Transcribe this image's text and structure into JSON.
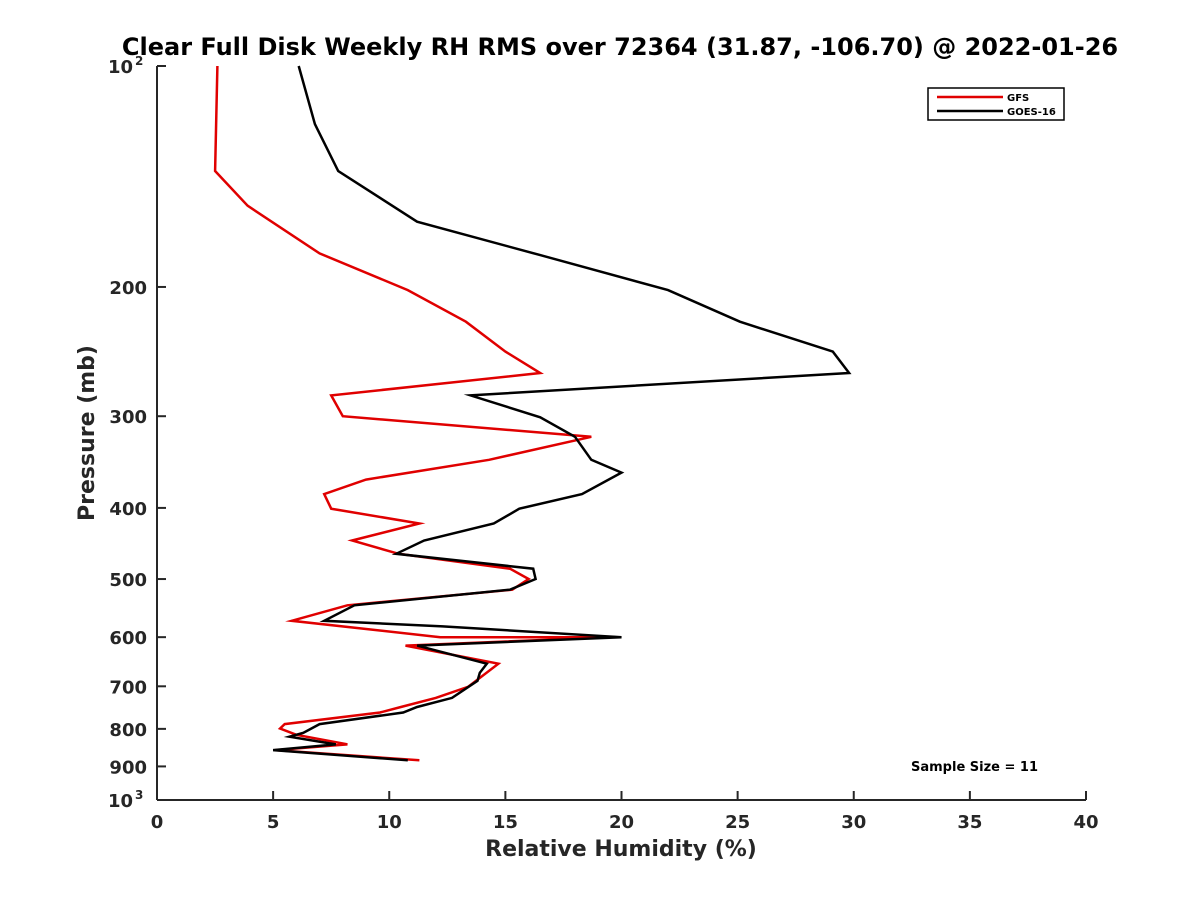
{
  "chart_data": {
    "type": "line",
    "title": "Clear Full Disk Weekly RH RMS over 72364 (31.87, -106.70) @ 2022-01-26",
    "xlabel": "Relative Humidity (%)",
    "ylabel": "Pressure (mb)",
    "xlim": [
      0,
      40
    ],
    "ylim": [
      100,
      1000
    ],
    "y_scale": "log",
    "y_reversed": true,
    "x_ticks": [
      0,
      5,
      10,
      15,
      20,
      25,
      30,
      35,
      40
    ],
    "y_ticks": [
      {
        "value": 100,
        "label": "10",
        "exp": "2"
      },
      {
        "value": 200,
        "label": "200"
      },
      {
        "value": 300,
        "label": "300"
      },
      {
        "value": 400,
        "label": "400"
      },
      {
        "value": 500,
        "label": "500"
      },
      {
        "value": 600,
        "label": "600"
      },
      {
        "value": 700,
        "label": "700"
      },
      {
        "value": 800,
        "label": "800"
      },
      {
        "value": 900,
        "label": "900"
      },
      {
        "value": 1000,
        "label": "10",
        "exp": "3"
      }
    ],
    "legend_position": "top-right",
    "grid": false,
    "series": [
      {
        "name": "GFS",
        "color": "#e00000",
        "points": [
          [
            2.6,
            100
          ],
          [
            2.5,
            139
          ],
          [
            3.9,
            155
          ],
          [
            7.0,
            180
          ],
          [
            10.8,
            202
          ],
          [
            13.3,
            223
          ],
          [
            15.0,
            245
          ],
          [
            16.5,
            262
          ],
          [
            7.5,
            281
          ],
          [
            8.0,
            300
          ],
          [
            18.7,
            320
          ],
          [
            14.3,
            344
          ],
          [
            9.0,
            366
          ],
          [
            7.2,
            383
          ],
          [
            7.5,
            401
          ],
          [
            11.3,
            420
          ],
          [
            8.4,
            443
          ],
          [
            10.4,
            462
          ],
          [
            15.2,
            484
          ],
          [
            16.0,
            500
          ],
          [
            15.3,
            517
          ],
          [
            8.2,
            543
          ],
          [
            5.8,
            570
          ],
          [
            12.2,
            600
          ],
          [
            19.6,
            600
          ],
          [
            10.7,
            616
          ],
          [
            14.7,
            652
          ],
          [
            13.4,
            701
          ],
          [
            12.0,
            726
          ],
          [
            10.5,
            747
          ],
          [
            9.6,
            760
          ],
          [
            5.5,
            788
          ],
          [
            5.3,
            799
          ],
          [
            6.0,
            815
          ],
          [
            8.2,
            840
          ],
          [
            5.1,
            855
          ],
          [
            11.3,
            883
          ]
        ]
      },
      {
        "name": "GOES-16",
        "color": "#000000",
        "points": [
          [
            6.1,
            100
          ],
          [
            6.8,
            120
          ],
          [
            7.8,
            139
          ],
          [
            11.2,
            163
          ],
          [
            16.5,
            181
          ],
          [
            22.0,
            202
          ],
          [
            25.1,
            223
          ],
          [
            29.1,
            245
          ],
          [
            29.8,
            262
          ],
          [
            13.5,
            281
          ],
          [
            16.5,
            301
          ],
          [
            18.0,
            320
          ],
          [
            18.7,
            344
          ],
          [
            20.0,
            358
          ],
          [
            18.3,
            383
          ],
          [
            15.6,
            401
          ],
          [
            14.5,
            420
          ],
          [
            11.5,
            443
          ],
          [
            10.3,
            462
          ],
          [
            16.2,
            484
          ],
          [
            16.3,
            500
          ],
          [
            15.2,
            517
          ],
          [
            8.5,
            543
          ],
          [
            7.2,
            570
          ],
          [
            12.3,
            580
          ],
          [
            20.0,
            600
          ],
          [
            11.2,
            616
          ],
          [
            14.2,
            652
          ],
          [
            13.9,
            671
          ],
          [
            13.8,
            688
          ],
          [
            12.7,
            726
          ],
          [
            11.2,
            747
          ],
          [
            10.6,
            760
          ],
          [
            7.0,
            788
          ],
          [
            6.3,
            810
          ],
          [
            5.7,
            820
          ],
          [
            7.7,
            840
          ],
          [
            5.0,
            855
          ],
          [
            10.8,
            883
          ]
        ]
      }
    ],
    "annotation": "Sample Size = 11"
  }
}
